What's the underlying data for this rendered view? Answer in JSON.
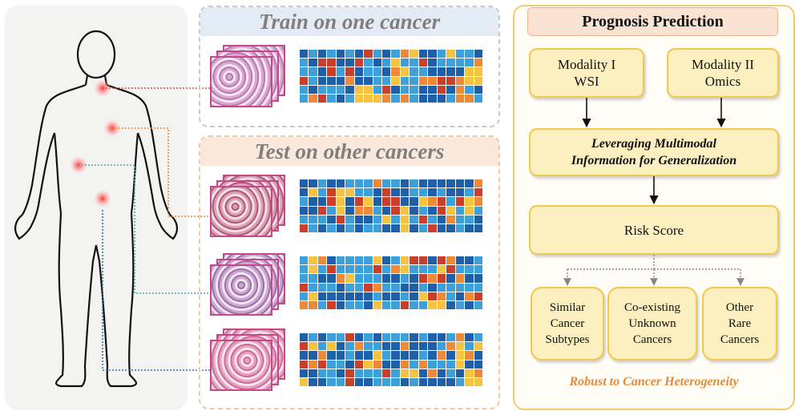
{
  "train": {
    "title": "Train on one cancer"
  },
  "test": {
    "title": "Test on other cancers"
  },
  "prognosis": {
    "title": "Prognosis Prediction",
    "modality1_line1": "Modality I",
    "modality1_line2": "WSI",
    "modality2_line1": "Modality II",
    "modality2_line2": "Omics",
    "leverage_line1": "Leveraging Multimodal",
    "leverage_line2": "Information for Generalization",
    "risk": "Risk Score",
    "out1": [
      "Similar",
      "Cancer",
      "Subtypes"
    ],
    "out2": [
      "Co-existing",
      "Unknown",
      "Cancers"
    ],
    "out3": [
      "Other",
      "Rare",
      "Cancers"
    ],
    "footer": "Robust to Cancer Heterogeneity"
  },
  "colors": {
    "heat_low": "#1f5fa8",
    "heat_mid": "#3ea0d8",
    "heat_high_yellow": "#f5c342",
    "heat_high_orange": "#ec8a3a",
    "heat_high_red": "#c8402b",
    "slide_border": "#c24a8a",
    "connector_red": "#d9534f",
    "connector_orange": "#e58a3a",
    "connector_teal": "#5aa6a6",
    "connector_blue": "#3f6fb5"
  }
}
